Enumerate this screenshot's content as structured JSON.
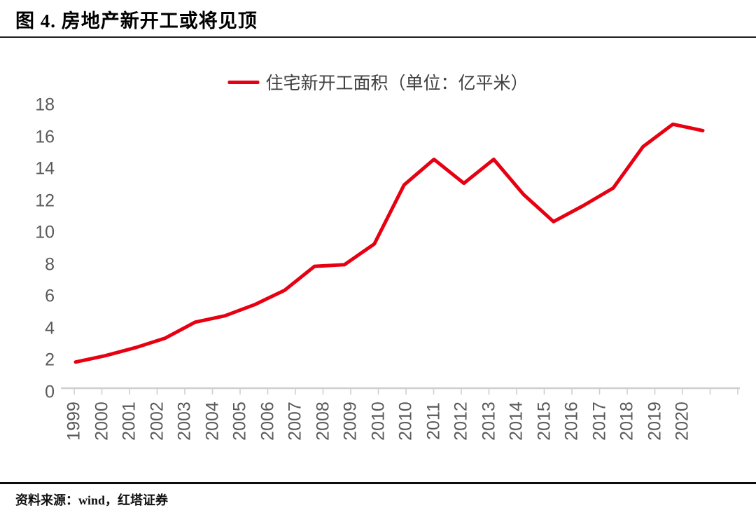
{
  "figure": {
    "title": "图 4. 房地产新开工或将见顶",
    "source": "资料来源：wind，红塔证券"
  },
  "legend": {
    "label": "住宅新开工面积（单位：亿平米）"
  },
  "colors": {
    "series_red": "#e60012",
    "axis_gray": "#d0cece",
    "tick_label_gray": "#595959"
  },
  "chart_data": {
    "type": "line",
    "title": "图 4. 房地产新开工或将见顶",
    "x": [
      1999,
      2000,
      2001,
      2002,
      2003,
      2004,
      2005,
      2006,
      2007,
      2008,
      2009,
      2010,
      2011,
      2012,
      2013,
      2014,
      2015,
      2016,
      2017,
      2018,
      2019,
      2020
    ],
    "series": [
      {
        "name": "住宅新开工面积（单位：亿平米）",
        "color": "#e60012",
        "values": [
          1.9,
          2.3,
          2.8,
          3.4,
          4.4,
          4.8,
          5.5,
          6.4,
          7.9,
          8.0,
          9.3,
          13.0,
          14.6,
          13.1,
          14.6,
          12.4,
          10.7,
          11.7,
          12.8,
          15.4,
          16.8,
          16.4
        ]
      }
    ],
    "x_axis_tick_labels_as_displayed": [
      "1999",
      "2000",
      "2001",
      "2002",
      "2003",
      "2004",
      "2005",
      "2006",
      "2007",
      "2008",
      "2009",
      "2010",
      "2010",
      "2011",
      "2012",
      "2013",
      "2014",
      "2015",
      "2016",
      "2017",
      "2018",
      "2019",
      "2020"
    ],
    "y_axis_tick_labels": [
      "0",
      "2",
      "4",
      "6",
      "8",
      "10",
      "12",
      "14",
      "16",
      "18"
    ],
    "xlabel": "",
    "ylabel": "",
    "ylim": [
      0,
      18
    ],
    "ytick_step": 2,
    "grid": false,
    "legend_position": "top-center"
  }
}
